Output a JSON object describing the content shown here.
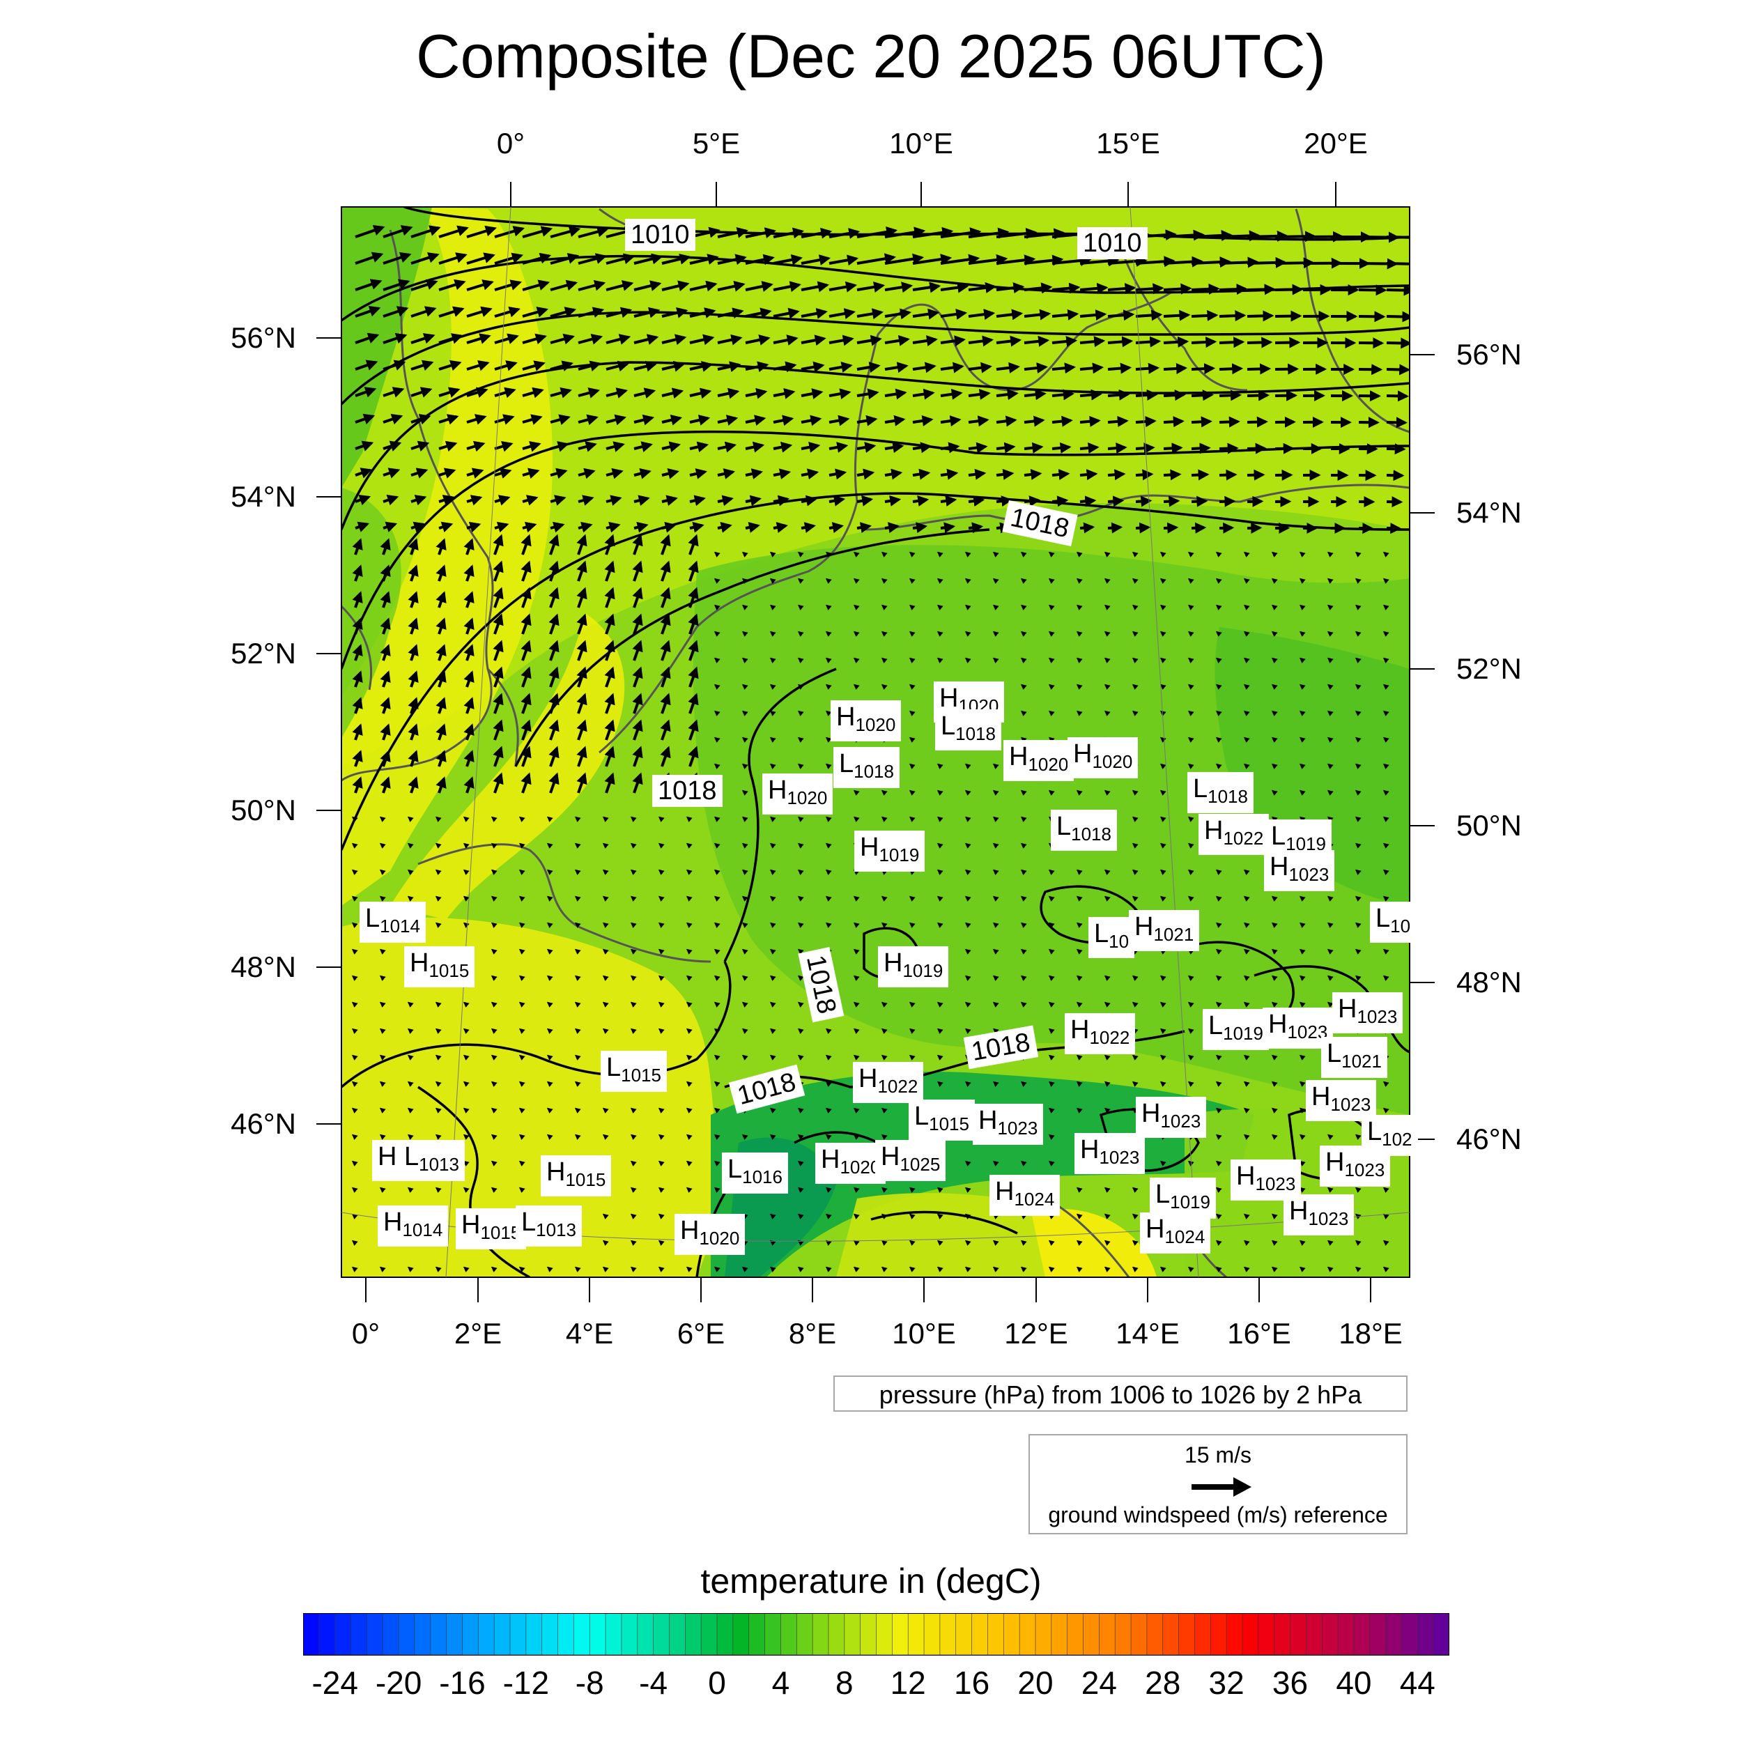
{
  "title": "Composite (Dec 20 2025 06UTC)",
  "top_lon_labels": [
    "0°",
    "5°E",
    "10°E",
    "15°E",
    "20°E"
  ],
  "bottom_lon_labels": [
    "0°",
    "2°E",
    "4°E",
    "6°E",
    "8°E",
    "10°E",
    "12°E",
    "14°E",
    "16°E",
    "18°E"
  ],
  "left_lat_labels": [
    "56°N",
    "54°N",
    "52°N",
    "50°N",
    "48°N",
    "46°N"
  ],
  "right_lat_labels": [
    "56°N",
    "54°N",
    "52°N",
    "50°N",
    "48°N",
    "46°N"
  ],
  "contour_labels": [
    "1010",
    "1010",
    "1018",
    "1018",
    "1018",
    "1018",
    "1018"
  ],
  "pressure_centers": [
    {
      "t": "H",
      "v": "1020"
    },
    {
      "t": "H",
      "v": "1020"
    },
    {
      "t": "L",
      "v": "1018"
    },
    {
      "t": "L",
      "v": "1018"
    },
    {
      "t": "H",
      "v": "1020"
    },
    {
      "t": "H",
      "v": "1020"
    },
    {
      "t": "H",
      "v": "1020"
    },
    {
      "t": "L",
      "v": "1018"
    },
    {
      "t": "H",
      "v": "1022"
    },
    {
      "t": "L",
      "v": "1019"
    },
    {
      "t": "H",
      "v": "1023"
    },
    {
      "t": "L",
      "v": "1018"
    },
    {
      "t": "H",
      "v": "1019"
    },
    {
      "t": "L",
      "v": "1014"
    },
    {
      "t": "H",
      "v": "1015"
    },
    {
      "t": "H",
      "v": "1019"
    },
    {
      "t": "L",
      "v": "10"
    },
    {
      "t": "H",
      "v": "1021"
    },
    {
      "t": "L",
      "v": "10"
    },
    {
      "t": "H",
      "v": "1022"
    },
    {
      "t": "L",
      "v": "1019"
    },
    {
      "t": "H",
      "v": "1023"
    },
    {
      "t": "H",
      "v": "1023"
    },
    {
      "t": "L",
      "v": "1021"
    },
    {
      "t": "L",
      "v": "1015"
    },
    {
      "t": "H",
      "v": "1022"
    },
    {
      "t": "L",
      "v": "1015"
    },
    {
      "t": "H",
      "v": "1023"
    },
    {
      "t": "H",
      "v": "1023"
    },
    {
      "t": "H",
      "v": "1023"
    },
    {
      "t": "L",
      "v": "102"
    },
    {
      "t": "H",
      "v": ""
    },
    {
      "t": "L",
      "v": "1013"
    },
    {
      "t": "H",
      "v": "1015"
    },
    {
      "t": "L",
      "v": "1016"
    },
    {
      "t": "H",
      "v": "1020"
    },
    {
      "t": "H",
      "v": "1025"
    },
    {
      "t": "H",
      "v": "1023"
    },
    {
      "t": "H",
      "v": "1023"
    },
    {
      "t": "H",
      "v": "1023"
    },
    {
      "t": "H",
      "v": "1024"
    },
    {
      "t": "L",
      "v": "1019"
    },
    {
      "t": "H",
      "v": "1023"
    },
    {
      "t": "H",
      "v": "1014"
    },
    {
      "t": "H",
      "v": "1015"
    },
    {
      "t": "L",
      "v": "1013"
    },
    {
      "t": "H",
      "v": "1020"
    },
    {
      "t": "H",
      "v": "1024"
    },
    {
      "t": "H",
      "v": "1023"
    }
  ],
  "pressure_caption": "pressure (hPa) from 1006 to 1026 by 2 hPa",
  "wind_reference": {
    "speed": "15 m/s",
    "caption": "ground windspeed (m/s) reference"
  },
  "colorbar": {
    "title": "temperature in (degC)",
    "labels": [
      "-24",
      "-20",
      "-16",
      "-12",
      "-8",
      "-4",
      "0",
      "4",
      "8",
      "12",
      "16",
      "20",
      "24",
      "28",
      "32",
      "36",
      "40",
      "44"
    ],
    "min": -26,
    "max": 46,
    "step": 1
  },
  "colors": {
    "field_green": "#66cc1e",
    "field_yellowgreen": "#b8e60e",
    "field_yellow": "#f0f00c",
    "field_darkgreen": "#0ea848",
    "contour": "#000000",
    "coast": "#555555"
  }
}
